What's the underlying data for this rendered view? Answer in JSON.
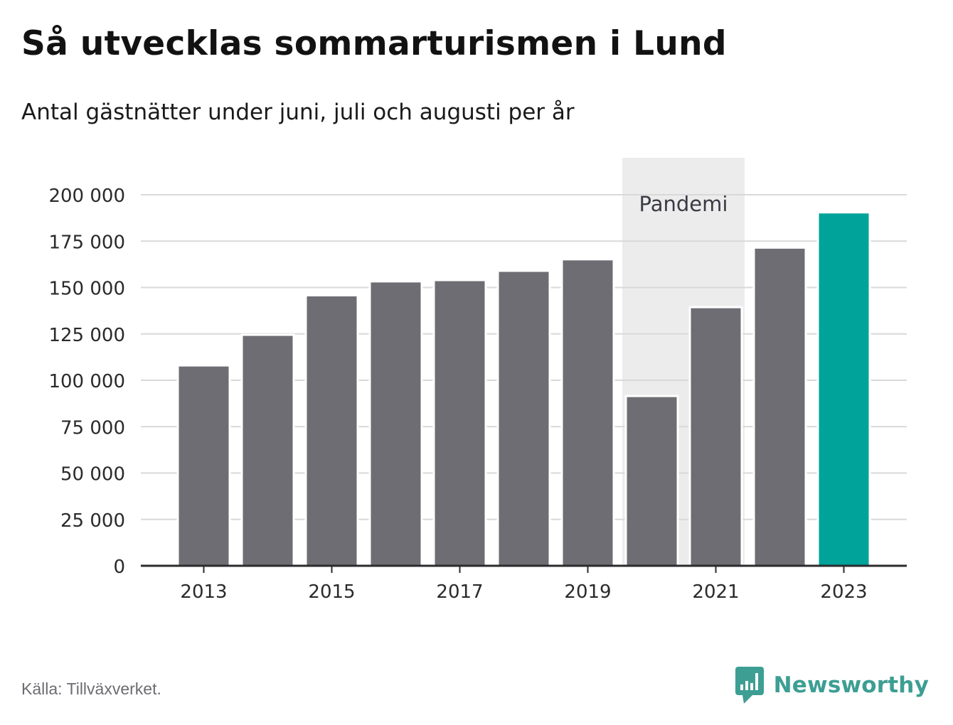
{
  "title": "Så utvecklas sommarturismen i Lund",
  "subtitle": "Antal gästnätter under juni, juli och augusti per år",
  "source": "Källa: Tillväxverket.",
  "brand": "Newsworthy",
  "colors": {
    "bar": "#6e6d73",
    "highlight": "#00a39a",
    "shade": "#ececec",
    "grid": "#d9d9d9",
    "axis": "#2b2b2b",
    "brand": "#3d9e93"
  },
  "chart_data": {
    "type": "bar",
    "categories": [
      "2013",
      "2014",
      "2015",
      "2016",
      "2017",
      "2018",
      "2019",
      "2020",
      "2021",
      "2022",
      "2023"
    ],
    "values": [
      108000,
      124500,
      145800,
      153300,
      154000,
      159000,
      165200,
      91500,
      139400,
      171500,
      190500
    ],
    "highlight": "2023",
    "xticks": [
      "2013",
      "2015",
      "2017",
      "2019",
      "2021",
      "2023"
    ],
    "yticks": [
      0,
      25000,
      50000,
      75000,
      100000,
      125000,
      150000,
      175000,
      200000
    ],
    "ytick_labels": [
      "0",
      "25 000",
      "50 000",
      "75 000",
      "100 000",
      "125 000",
      "150 000",
      "175 000",
      "200 000"
    ],
    "ylim": [
      0,
      200000
    ],
    "grid": true,
    "annotation": {
      "label": "Pandemi",
      "from": "2020",
      "to": "2021"
    }
  }
}
